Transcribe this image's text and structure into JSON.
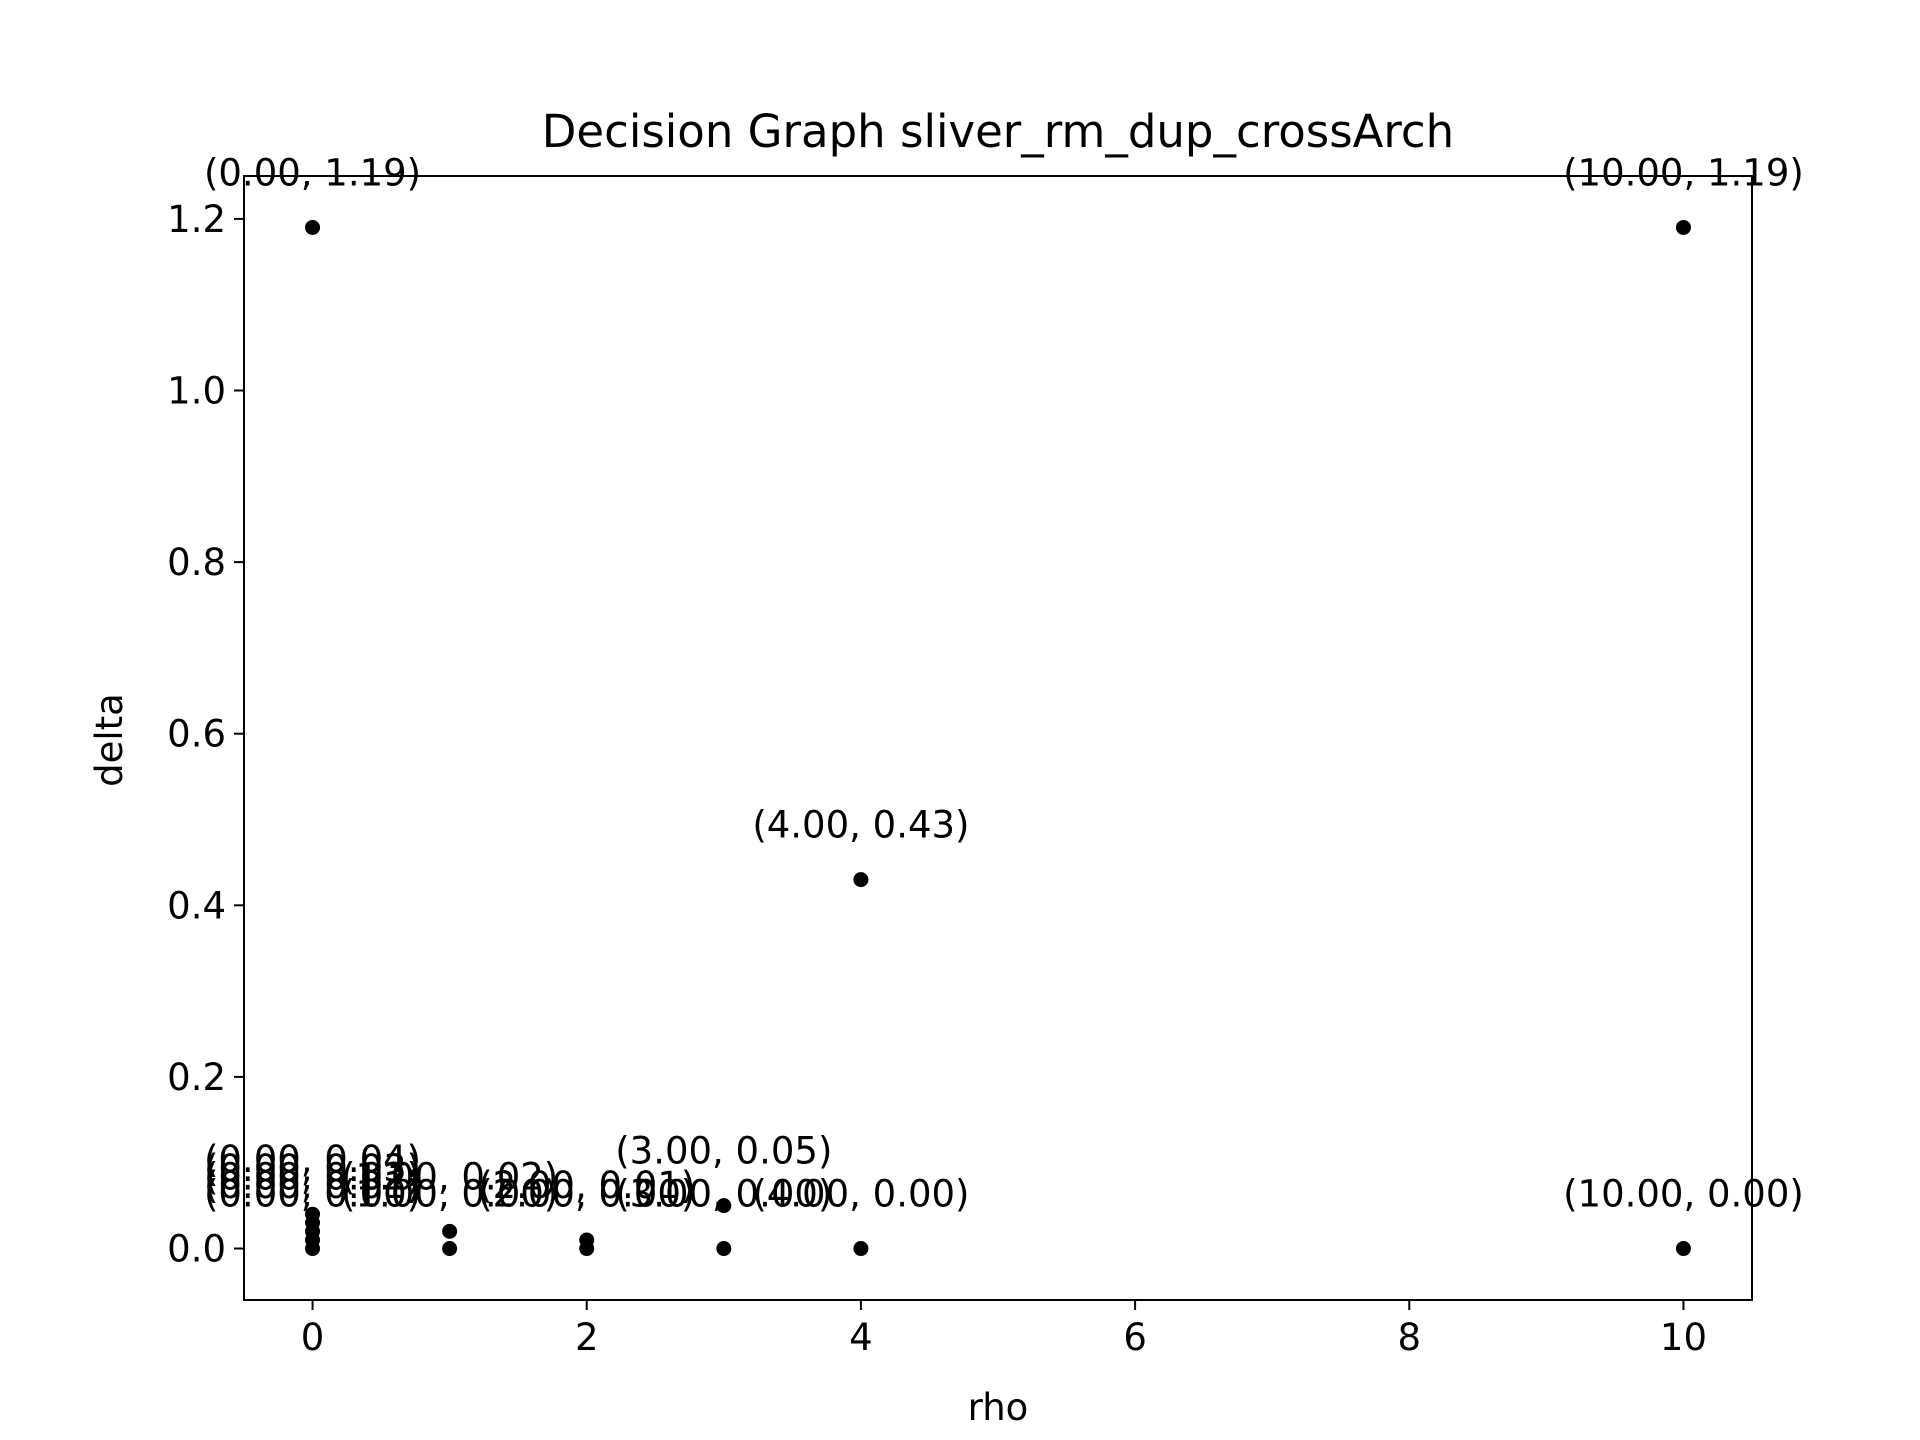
{
  "chart_data": {
    "type": "scatter",
    "title": "Decision Graph sliver_rm_dup_crossArch",
    "xlabel": "rho",
    "ylabel": "delta",
    "xlim": [
      -0.5,
      10.5
    ],
    "ylim": [
      -0.06,
      1.25
    ],
    "xticks": [
      0,
      2,
      4,
      6,
      8,
      10
    ],
    "yticks": [
      0.0,
      0.2,
      0.4,
      0.6,
      0.8,
      1.0,
      1.2
    ],
    "grid": false,
    "legend": "none",
    "marker_color": "#000000",
    "points": [
      {
        "x": 0,
        "y": 1.19,
        "label": "(0.00, 1.19)"
      },
      {
        "x": 10,
        "y": 1.19,
        "label": "(10.00, 1.19)"
      },
      {
        "x": 4,
        "y": 0.43,
        "label": "(4.00, 0.43)"
      },
      {
        "x": 3,
        "y": 0.05,
        "label": "(3.00, 0.05)"
      },
      {
        "x": 0,
        "y": 0.04,
        "label": "(0.00, 0.04)"
      },
      {
        "x": 0,
        "y": 0.03,
        "label": "(0.00, 0.03)"
      },
      {
        "x": 0,
        "y": 0.02,
        "label": "(0.00, 0.02)"
      },
      {
        "x": 0,
        "y": 0.01,
        "label": "(0.00, 0.01)"
      },
      {
        "x": 0,
        "y": 0.0,
        "label": "(0.00, 0.00)"
      },
      {
        "x": 1,
        "y": 0.02,
        "label": "(1.00, 0.02)"
      },
      {
        "x": 1,
        "y": 0.0,
        "label": "(1.00, 0.00)"
      },
      {
        "x": 2,
        "y": 0.01,
        "label": "(2.00, 0.01)"
      },
      {
        "x": 2,
        "y": 0.0,
        "label": "(2.00, 0.00)"
      },
      {
        "x": 3,
        "y": 0.0,
        "label": "(3.00, 0.00)"
      },
      {
        "x": 4,
        "y": 0.0,
        "label": "(4.00, 0.00)"
      },
      {
        "x": 10,
        "y": 0.0,
        "label": "(10.00, 0.00)"
      }
    ]
  }
}
